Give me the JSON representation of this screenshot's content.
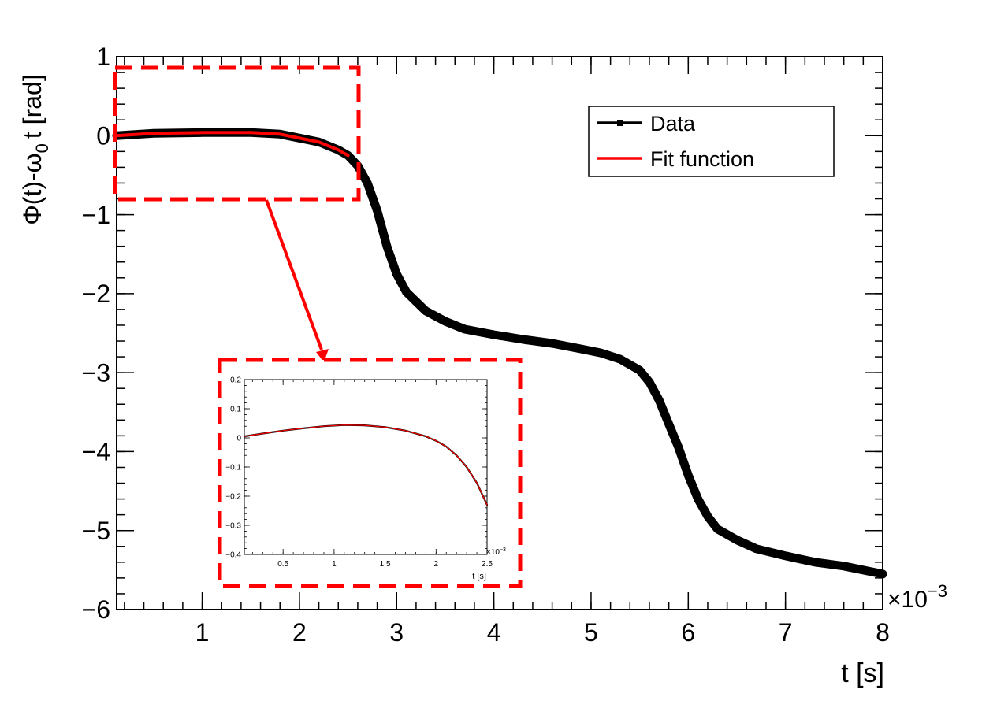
{
  "chart_data": [
    {
      "type": "line",
      "xlabel": "t [s]",
      "ylabel_main": "Φ(t)-ω",
      "ylabel_sub": "0",
      "ylabel_tail": "t [rad]",
      "x_multiplier": "×10",
      "x_exponent": "−3",
      "xlim": [
        0.12,
        8
      ],
      "ylim": [
        -6,
        1
      ],
      "grid": false,
      "legend_position": "top-right",
      "x_ticks": [
        {
          "value": 1,
          "label": "1"
        },
        {
          "value": 2,
          "label": "2"
        },
        {
          "value": 3,
          "label": "3"
        },
        {
          "value": 4,
          "label": "4"
        },
        {
          "value": 5,
          "label": "5"
        },
        {
          "value": 6,
          "label": "6"
        },
        {
          "value": 7,
          "label": "7"
        },
        {
          "value": 8,
          "label": "8"
        }
      ],
      "y_ticks": [
        {
          "value": 1,
          "label": "1"
        },
        {
          "value": 0,
          "label": "0"
        },
        {
          "value": -1,
          "label": "−1"
        },
        {
          "value": -2,
          "label": "−2"
        },
        {
          "value": -3,
          "label": "−3"
        },
        {
          "value": -4,
          "label": "−4"
        },
        {
          "value": -5,
          "label": "−5"
        },
        {
          "value": -6,
          "label": "−6"
        }
      ],
      "series": [
        {
          "name": "Data",
          "color": "#000000",
          "x": [
            0.12,
            0.5,
            1.0,
            1.2,
            1.5,
            1.8,
            2.0,
            2.2,
            2.4,
            2.5,
            2.6,
            2.7,
            2.8,
            2.9,
            3.0,
            3.1,
            3.2,
            3.3,
            3.5,
            3.7,
            4.0,
            4.3,
            4.6,
            4.9,
            5.1,
            5.3,
            5.5,
            5.6,
            5.7,
            5.8,
            5.9,
            6.0,
            6.1,
            6.2,
            6.3,
            6.5,
            6.7,
            7.0,
            7.3,
            7.6,
            8.0
          ],
          "y": [
            0.0,
            0.03,
            0.04,
            0.04,
            0.04,
            0.02,
            -0.03,
            -0.08,
            -0.18,
            -0.25,
            -0.38,
            -0.6,
            -0.95,
            -1.4,
            -1.75,
            -1.98,
            -2.1,
            -2.22,
            -2.35,
            -2.45,
            -2.52,
            -2.58,
            -2.63,
            -2.7,
            -2.75,
            -2.83,
            -2.97,
            -3.12,
            -3.35,
            -3.65,
            -3.95,
            -4.3,
            -4.6,
            -4.82,
            -4.98,
            -5.12,
            -5.23,
            -5.32,
            -5.4,
            -5.45,
            -5.55
          ]
        },
        {
          "name": "Fit function",
          "color": "#ff0000",
          "x": [
            0.12,
            0.5,
            1.0,
            1.2,
            1.5,
            1.8,
            2.0,
            2.2,
            2.4,
            2.5
          ],
          "y": [
            0.0,
            0.03,
            0.04,
            0.04,
            0.04,
            0.02,
            -0.03,
            -0.08,
            -0.18,
            -0.25
          ]
        }
      ]
    },
    {
      "type": "line",
      "xlabel": "t [s]",
      "x_multiplier": "×10",
      "x_exponent": "−3",
      "xlim": [
        0.12,
        2.5
      ],
      "ylim": [
        -0.4,
        0.2
      ],
      "grid": false,
      "x_ticks": [
        {
          "value": 0.5,
          "label": "0.5"
        },
        {
          "value": 1.0,
          "label": "1"
        },
        {
          "value": 1.5,
          "label": "1.5"
        },
        {
          "value": 2.0,
          "label": "2"
        },
        {
          "value": 2.5,
          "label": "2.5"
        }
      ],
      "y_ticks": [
        {
          "value": 0.2,
          "label": "0.2"
        },
        {
          "value": 0.1,
          "label": "0.1"
        },
        {
          "value": 0,
          "label": "0"
        },
        {
          "value": -0.1,
          "label": "−0.1"
        },
        {
          "value": -0.2,
          "label": "−0.2"
        },
        {
          "value": -0.3,
          "label": "−0.3"
        },
        {
          "value": -0.4,
          "label": "−0.4"
        }
      ],
      "series": [
        {
          "name": "Data",
          "color": "#000000",
          "x": [
            0.12,
            0.3,
            0.5,
            0.7,
            0.9,
            1.1,
            1.3,
            1.5,
            1.7,
            1.9,
            2.0,
            2.1,
            2.2,
            2.3,
            2.4,
            2.5
          ],
          "y": [
            0.005,
            0.015,
            0.025,
            0.033,
            0.04,
            0.044,
            0.043,
            0.037,
            0.025,
            0.005,
            -0.01,
            -0.03,
            -0.06,
            -0.1,
            -0.155,
            -0.23
          ]
        },
        {
          "name": "Fit function",
          "color": "#ff0000",
          "x": [
            0.12,
            0.3,
            0.5,
            0.7,
            0.9,
            1.1,
            1.3,
            1.5,
            1.7,
            1.9,
            2.0,
            2.1,
            2.2,
            2.3,
            2.4,
            2.5
          ],
          "y": [
            0.005,
            0.015,
            0.025,
            0.033,
            0.04,
            0.044,
            0.043,
            0.037,
            0.025,
            0.005,
            -0.01,
            -0.03,
            -0.06,
            -0.1,
            -0.155,
            -0.23
          ]
        }
      ]
    }
  ],
  "annotation_color": "#ff0000"
}
